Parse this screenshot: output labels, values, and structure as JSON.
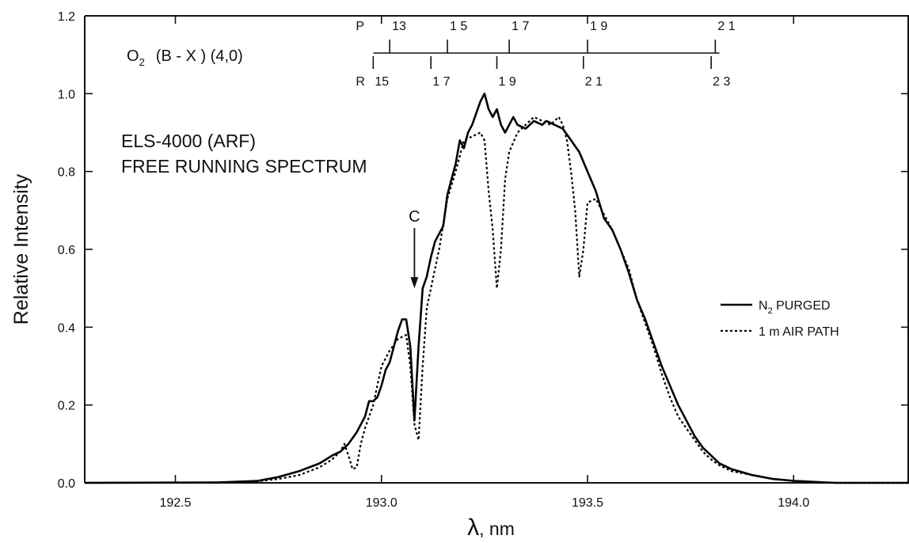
{
  "chart_data": {
    "type": "line",
    "xlabel_symbol": "λ",
    "xlabel_unit": ", nm",
    "ylabel": "Relative   Intensity",
    "xlim": [
      192.28,
      194.28
    ],
    "ylim": [
      0.0,
      1.2
    ],
    "x_ticks": [
      192.5,
      193.0,
      193.5,
      194.0
    ],
    "x_tick_labels": [
      "192.5",
      "193.0",
      "193.5",
      "194.0"
    ],
    "y_ticks": [
      0.0,
      0.2,
      0.4,
      0.6,
      0.8,
      1.0,
      1.2
    ],
    "y_tick_labels": [
      "0.0",
      "0.2",
      "0.4",
      "0.6",
      "0.8",
      "1.0",
      "1.2"
    ],
    "molecule": {
      "main": "O",
      "subscript": "2",
      "rest": "(B - X )  (4,0)"
    },
    "title_lines": [
      "ELS-4000 (ARF)",
      "FREE RUNNING SPECTRUM"
    ],
    "arrow_label": "C",
    "arrow_x": 193.08,
    "arrow_y_from": 0.655,
    "arrow_y_to": 0.5,
    "legend_placement": "right",
    "legend": [
      {
        "style": "solid",
        "pre": "N",
        "sub": "2",
        "post": " PURGED"
      },
      {
        "style": "dotted",
        "pre": "1 m AIR PATH",
        "sub": "",
        "post": ""
      }
    ],
    "branches": {
      "line_x_range": [
        192.98,
        193.82
      ],
      "P": {
        "label": "P",
        "ticks": [
          {
            "x": 193.02,
            "label": "13"
          },
          {
            "x": 193.16,
            "label": "1 5"
          },
          {
            "x": 193.31,
            "label": "1 7"
          },
          {
            "x": 193.5,
            "label": "1 9"
          },
          {
            "x": 193.81,
            "label": "2 1"
          }
        ]
      },
      "R": {
        "label": "R",
        "ticks": [
          {
            "x": 192.98,
            "label": "15"
          },
          {
            "x": 193.12,
            "label": "1 7"
          },
          {
            "x": 193.28,
            "label": "1 9"
          },
          {
            "x": 193.49,
            "label": "2 1"
          },
          {
            "x": 193.8,
            "label": "2 3"
          }
        ]
      }
    },
    "series": [
      {
        "name": "N2 PURGED",
        "style": "solid",
        "points": [
          [
            192.28,
            0.0
          ],
          [
            192.6,
            0.001
          ],
          [
            192.7,
            0.005
          ],
          [
            192.75,
            0.015
          ],
          [
            192.8,
            0.03
          ],
          [
            192.85,
            0.05
          ],
          [
            192.88,
            0.07
          ],
          [
            192.9,
            0.08
          ],
          [
            192.92,
            0.1
          ],
          [
            192.94,
            0.13
          ],
          [
            192.96,
            0.17
          ],
          [
            192.97,
            0.21
          ],
          [
            192.98,
            0.21
          ],
          [
            192.99,
            0.22
          ],
          [
            193.0,
            0.25
          ],
          [
            193.01,
            0.29
          ],
          [
            193.02,
            0.31
          ],
          [
            193.03,
            0.35
          ],
          [
            193.04,
            0.39
          ],
          [
            193.05,
            0.42
          ],
          [
            193.06,
            0.42
          ],
          [
            193.07,
            0.35
          ],
          [
            193.08,
            0.16
          ],
          [
            193.09,
            0.35
          ],
          [
            193.1,
            0.5
          ],
          [
            193.11,
            0.53
          ],
          [
            193.12,
            0.58
          ],
          [
            193.13,
            0.62
          ],
          [
            193.14,
            0.64
          ],
          [
            193.15,
            0.66
          ],
          [
            193.16,
            0.74
          ],
          [
            193.17,
            0.78
          ],
          [
            193.18,
            0.82
          ],
          [
            193.19,
            0.88
          ],
          [
            193.2,
            0.86
          ],
          [
            193.21,
            0.9
          ],
          [
            193.22,
            0.92
          ],
          [
            193.23,
            0.95
          ],
          [
            193.24,
            0.98
          ],
          [
            193.25,
            1.0
          ],
          [
            193.26,
            0.96
          ],
          [
            193.27,
            0.94
          ],
          [
            193.28,
            0.96
          ],
          [
            193.29,
            0.92
          ],
          [
            193.3,
            0.9
          ],
          [
            193.31,
            0.92
          ],
          [
            193.32,
            0.94
          ],
          [
            193.33,
            0.92
          ],
          [
            193.35,
            0.91
          ],
          [
            193.37,
            0.93
          ],
          [
            193.39,
            0.92
          ],
          [
            193.4,
            0.93
          ],
          [
            193.42,
            0.92
          ],
          [
            193.44,
            0.91
          ],
          [
            193.46,
            0.88
          ],
          [
            193.48,
            0.85
          ],
          [
            193.5,
            0.8
          ],
          [
            193.52,
            0.75
          ],
          [
            193.54,
            0.68
          ],
          [
            193.56,
            0.65
          ],
          [
            193.58,
            0.6
          ],
          [
            193.6,
            0.54
          ],
          [
            193.62,
            0.47
          ],
          [
            193.64,
            0.42
          ],
          [
            193.66,
            0.36
          ],
          [
            193.68,
            0.3
          ],
          [
            193.7,
            0.25
          ],
          [
            193.72,
            0.2
          ],
          [
            193.74,
            0.16
          ],
          [
            193.76,
            0.12
          ],
          [
            193.78,
            0.09
          ],
          [
            193.8,
            0.07
          ],
          [
            193.82,
            0.05
          ],
          [
            193.85,
            0.035
          ],
          [
            193.9,
            0.02
          ],
          [
            193.95,
            0.01
          ],
          [
            194.0,
            0.005
          ],
          [
            194.1,
            0.0
          ],
          [
            194.28,
            0.0
          ]
        ]
      },
      {
        "name": "1 m AIR PATH",
        "style": "dotted",
        "points": [
          [
            192.28,
            0.0
          ],
          [
            192.6,
            0.001
          ],
          [
            192.7,
            0.004
          ],
          [
            192.75,
            0.01
          ],
          [
            192.8,
            0.02
          ],
          [
            192.85,
            0.04
          ],
          [
            192.88,
            0.06
          ],
          [
            192.9,
            0.08
          ],
          [
            192.91,
            0.1
          ],
          [
            192.92,
            0.07
          ],
          [
            192.93,
            0.035
          ],
          [
            192.94,
            0.04
          ],
          [
            192.95,
            0.1
          ],
          [
            192.96,
            0.14
          ],
          [
            192.97,
            0.17
          ],
          [
            192.98,
            0.2
          ],
          [
            193.0,
            0.3
          ],
          [
            193.02,
            0.34
          ],
          [
            193.04,
            0.37
          ],
          [
            193.06,
            0.38
          ],
          [
            193.07,
            0.3
          ],
          [
            193.08,
            0.15
          ],
          [
            193.09,
            0.11
          ],
          [
            193.1,
            0.3
          ],
          [
            193.11,
            0.45
          ],
          [
            193.12,
            0.5
          ],
          [
            193.14,
            0.6
          ],
          [
            193.16,
            0.73
          ],
          [
            193.18,
            0.8
          ],
          [
            193.2,
            0.88
          ],
          [
            193.22,
            0.89
          ],
          [
            193.24,
            0.9
          ],
          [
            193.25,
            0.88
          ],
          [
            193.26,
            0.75
          ],
          [
            193.27,
            0.65
          ],
          [
            193.28,
            0.5
          ],
          [
            193.29,
            0.6
          ],
          [
            193.3,
            0.78
          ],
          [
            193.31,
            0.85
          ],
          [
            193.33,
            0.9
          ],
          [
            193.35,
            0.92
          ],
          [
            193.37,
            0.94
          ],
          [
            193.39,
            0.93
          ],
          [
            193.41,
            0.92
          ],
          [
            193.43,
            0.94
          ],
          [
            193.44,
            0.92
          ],
          [
            193.45,
            0.88
          ],
          [
            193.46,
            0.8
          ],
          [
            193.47,
            0.7
          ],
          [
            193.48,
            0.53
          ],
          [
            193.49,
            0.6
          ],
          [
            193.5,
            0.72
          ],
          [
            193.52,
            0.73
          ],
          [
            193.54,
            0.69
          ],
          [
            193.56,
            0.65
          ],
          [
            193.58,
            0.6
          ],
          [
            193.6,
            0.55
          ],
          [
            193.62,
            0.47
          ],
          [
            193.64,
            0.41
          ],
          [
            193.66,
            0.35
          ],
          [
            193.68,
            0.28
          ],
          [
            193.7,
            0.22
          ],
          [
            193.72,
            0.17
          ],
          [
            193.74,
            0.14
          ],
          [
            193.76,
            0.11
          ],
          [
            193.78,
            0.08
          ],
          [
            193.8,
            0.06
          ],
          [
            193.82,
            0.045
          ],
          [
            193.85,
            0.03
          ],
          [
            193.9,
            0.02
          ],
          [
            193.95,
            0.01
          ],
          [
            194.0,
            0.005
          ],
          [
            194.1,
            0.0
          ],
          [
            194.28,
            0.0
          ]
        ]
      }
    ]
  }
}
